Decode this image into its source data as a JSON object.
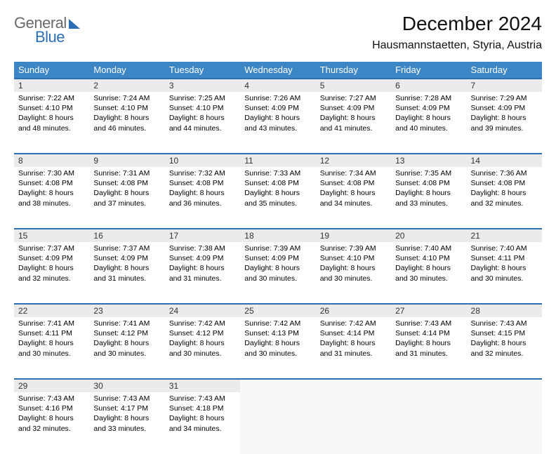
{
  "logo": {
    "word1": "General",
    "word2": "Blue"
  },
  "title": "December 2024",
  "location": "Hausmannstaetten, Styria, Austria",
  "colors": {
    "header_bg": "#3d86c6",
    "header_text": "#ffffff",
    "rule": "#2d6fb7",
    "daynum_bg": "#ebebeb",
    "empty_bg": "#f8f8f8",
    "logo_gray": "#6a6a6a",
    "logo_blue": "#2d6fb7"
  },
  "weekdays": [
    "Sunday",
    "Monday",
    "Tuesday",
    "Wednesday",
    "Thursday",
    "Friday",
    "Saturday"
  ],
  "weeks": [
    [
      {
        "n": "1",
        "sunrise": "Sunrise: 7:22 AM",
        "sunset": "Sunset: 4:10 PM",
        "daylight": "Daylight: 8 hours and 48 minutes."
      },
      {
        "n": "2",
        "sunrise": "Sunrise: 7:24 AM",
        "sunset": "Sunset: 4:10 PM",
        "daylight": "Daylight: 8 hours and 46 minutes."
      },
      {
        "n": "3",
        "sunrise": "Sunrise: 7:25 AM",
        "sunset": "Sunset: 4:10 PM",
        "daylight": "Daylight: 8 hours and 44 minutes."
      },
      {
        "n": "4",
        "sunrise": "Sunrise: 7:26 AM",
        "sunset": "Sunset: 4:09 PM",
        "daylight": "Daylight: 8 hours and 43 minutes."
      },
      {
        "n": "5",
        "sunrise": "Sunrise: 7:27 AM",
        "sunset": "Sunset: 4:09 PM",
        "daylight": "Daylight: 8 hours and 41 minutes."
      },
      {
        "n": "6",
        "sunrise": "Sunrise: 7:28 AM",
        "sunset": "Sunset: 4:09 PM",
        "daylight": "Daylight: 8 hours and 40 minutes."
      },
      {
        "n": "7",
        "sunrise": "Sunrise: 7:29 AM",
        "sunset": "Sunset: 4:09 PM",
        "daylight": "Daylight: 8 hours and 39 minutes."
      }
    ],
    [
      {
        "n": "8",
        "sunrise": "Sunrise: 7:30 AM",
        "sunset": "Sunset: 4:08 PM",
        "daylight": "Daylight: 8 hours and 38 minutes."
      },
      {
        "n": "9",
        "sunrise": "Sunrise: 7:31 AM",
        "sunset": "Sunset: 4:08 PM",
        "daylight": "Daylight: 8 hours and 37 minutes."
      },
      {
        "n": "10",
        "sunrise": "Sunrise: 7:32 AM",
        "sunset": "Sunset: 4:08 PM",
        "daylight": "Daylight: 8 hours and 36 minutes."
      },
      {
        "n": "11",
        "sunrise": "Sunrise: 7:33 AM",
        "sunset": "Sunset: 4:08 PM",
        "daylight": "Daylight: 8 hours and 35 minutes."
      },
      {
        "n": "12",
        "sunrise": "Sunrise: 7:34 AM",
        "sunset": "Sunset: 4:08 PM",
        "daylight": "Daylight: 8 hours and 34 minutes."
      },
      {
        "n": "13",
        "sunrise": "Sunrise: 7:35 AM",
        "sunset": "Sunset: 4:08 PM",
        "daylight": "Daylight: 8 hours and 33 minutes."
      },
      {
        "n": "14",
        "sunrise": "Sunrise: 7:36 AM",
        "sunset": "Sunset: 4:08 PM",
        "daylight": "Daylight: 8 hours and 32 minutes."
      }
    ],
    [
      {
        "n": "15",
        "sunrise": "Sunrise: 7:37 AM",
        "sunset": "Sunset: 4:09 PM",
        "daylight": "Daylight: 8 hours and 32 minutes."
      },
      {
        "n": "16",
        "sunrise": "Sunrise: 7:37 AM",
        "sunset": "Sunset: 4:09 PM",
        "daylight": "Daylight: 8 hours and 31 minutes."
      },
      {
        "n": "17",
        "sunrise": "Sunrise: 7:38 AM",
        "sunset": "Sunset: 4:09 PM",
        "daylight": "Daylight: 8 hours and 31 minutes."
      },
      {
        "n": "18",
        "sunrise": "Sunrise: 7:39 AM",
        "sunset": "Sunset: 4:09 PM",
        "daylight": "Daylight: 8 hours and 30 minutes."
      },
      {
        "n": "19",
        "sunrise": "Sunrise: 7:39 AM",
        "sunset": "Sunset: 4:10 PM",
        "daylight": "Daylight: 8 hours and 30 minutes."
      },
      {
        "n": "20",
        "sunrise": "Sunrise: 7:40 AM",
        "sunset": "Sunset: 4:10 PM",
        "daylight": "Daylight: 8 hours and 30 minutes."
      },
      {
        "n": "21",
        "sunrise": "Sunrise: 7:40 AM",
        "sunset": "Sunset: 4:11 PM",
        "daylight": "Daylight: 8 hours and 30 minutes."
      }
    ],
    [
      {
        "n": "22",
        "sunrise": "Sunrise: 7:41 AM",
        "sunset": "Sunset: 4:11 PM",
        "daylight": "Daylight: 8 hours and 30 minutes."
      },
      {
        "n": "23",
        "sunrise": "Sunrise: 7:41 AM",
        "sunset": "Sunset: 4:12 PM",
        "daylight": "Daylight: 8 hours and 30 minutes."
      },
      {
        "n": "24",
        "sunrise": "Sunrise: 7:42 AM",
        "sunset": "Sunset: 4:12 PM",
        "daylight": "Daylight: 8 hours and 30 minutes."
      },
      {
        "n": "25",
        "sunrise": "Sunrise: 7:42 AM",
        "sunset": "Sunset: 4:13 PM",
        "daylight": "Daylight: 8 hours and 30 minutes."
      },
      {
        "n": "26",
        "sunrise": "Sunrise: 7:42 AM",
        "sunset": "Sunset: 4:14 PM",
        "daylight": "Daylight: 8 hours and 31 minutes."
      },
      {
        "n": "27",
        "sunrise": "Sunrise: 7:43 AM",
        "sunset": "Sunset: 4:14 PM",
        "daylight": "Daylight: 8 hours and 31 minutes."
      },
      {
        "n": "28",
        "sunrise": "Sunrise: 7:43 AM",
        "sunset": "Sunset: 4:15 PM",
        "daylight": "Daylight: 8 hours and 32 minutes."
      }
    ],
    [
      {
        "n": "29",
        "sunrise": "Sunrise: 7:43 AM",
        "sunset": "Sunset: 4:16 PM",
        "daylight": "Daylight: 8 hours and 32 minutes."
      },
      {
        "n": "30",
        "sunrise": "Sunrise: 7:43 AM",
        "sunset": "Sunset: 4:17 PM",
        "daylight": "Daylight: 8 hours and 33 minutes."
      },
      {
        "n": "31",
        "sunrise": "Sunrise: 7:43 AM",
        "sunset": "Sunset: 4:18 PM",
        "daylight": "Daylight: 8 hours and 34 minutes."
      },
      null,
      null,
      null,
      null
    ]
  ]
}
